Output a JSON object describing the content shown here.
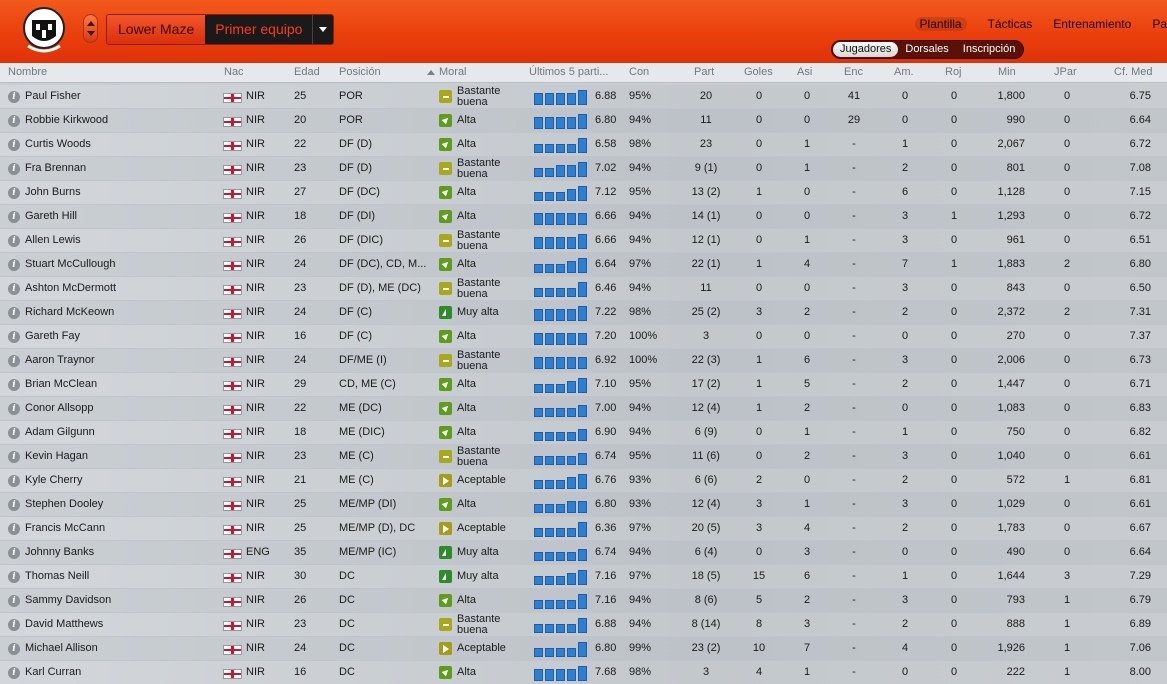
{
  "header": {
    "club_label": "Lower Maze",
    "squad_label": "Primer equipo",
    "nav": [
      "Plantilla",
      "Tácticas",
      "Entrenamiento",
      "Pa"
    ],
    "subnav": [
      "Jugadores",
      "Dorsales",
      "Inscripción"
    ],
    "colors": {
      "header": "#ea3f0d",
      "accent": "#2f7fd0"
    }
  },
  "columns": {
    "nombre": "Nombre",
    "nac": "Nac",
    "edad": "Edad",
    "posicion": "Posición",
    "moral": "Moral",
    "ultimos": "Últimos 5 parti...",
    "con": "Con",
    "part": "Part",
    "goles": "Goles",
    "asi": "Asi",
    "enc": "Enc",
    "am": "Am.",
    "roj": "Roj",
    "min": "Min",
    "jpar": "JPar",
    "cfmed": "Cf. Med"
  },
  "players": [
    {
      "name": "Paul Fisher",
      "nat": "NIR",
      "age": "25",
      "pos": "POR",
      "moral": "Bastante buena",
      "mk": "bb",
      "form": [
        4,
        4,
        4,
        4,
        5
      ],
      "cf": "6.88",
      "con": "95%",
      "part": "20",
      "goles": "0",
      "asi": "0",
      "enc": "41",
      "am": "0",
      "roj": "0",
      "min": "1,800",
      "jpar": "0",
      "med": "6.75"
    },
    {
      "name": "Robbie Kirkwood",
      "nat": "NIR",
      "age": "20",
      "pos": "POR",
      "moral": "Alta",
      "mk": "a",
      "form": [
        4,
        4,
        4,
        4,
        5
      ],
      "cf": "6.80",
      "con": "94%",
      "part": "11",
      "goles": "0",
      "asi": "0",
      "enc": "29",
      "am": "0",
      "roj": "0",
      "min": "990",
      "jpar": "0",
      "med": "6.64"
    },
    {
      "name": "Curtis Woods",
      "nat": "NIR",
      "age": "22",
      "pos": "DF (D)",
      "moral": "Alta",
      "mk": "a",
      "form": [
        3,
        3,
        3,
        3,
        5
      ],
      "cf": "6.58",
      "con": "98%",
      "part": "23",
      "goles": "0",
      "asi": "1",
      "enc": "-",
      "am": "1",
      "roj": "0",
      "min": "2,067",
      "jpar": "0",
      "med": "6.72"
    },
    {
      "name": "Fra Brennan",
      "nat": "NIR",
      "age": "23",
      "pos": "DF (D)",
      "moral": "Bastante buena",
      "mk": "bb",
      "form": [
        3,
        3,
        4,
        4,
        5
      ],
      "cf": "7.02",
      "con": "94%",
      "part": "9 (1)",
      "goles": "0",
      "asi": "1",
      "enc": "-",
      "am": "2",
      "roj": "0",
      "min": "801",
      "jpar": "0",
      "med": "7.08"
    },
    {
      "name": "John Burns",
      "nat": "NIR",
      "age": "27",
      "pos": "DF (DC)",
      "moral": "Alta",
      "mk": "a",
      "form": [
        3,
        3,
        3,
        4,
        5
      ],
      "cf": "7.12",
      "con": "95%",
      "part": "13 (2)",
      "goles": "1",
      "asi": "0",
      "enc": "-",
      "am": "6",
      "roj": "0",
      "min": "1,128",
      "jpar": "0",
      "med": "7.15"
    },
    {
      "name": "Gareth Hill",
      "nat": "NIR",
      "age": "18",
      "pos": "DF (DI)",
      "moral": "Alta",
      "mk": "a",
      "form": [
        4,
        4,
        4,
        4,
        4
      ],
      "cf": "6.66",
      "con": "94%",
      "part": "14 (1)",
      "goles": "0",
      "asi": "0",
      "enc": "-",
      "am": "3",
      "roj": "1",
      "min": "1,293",
      "jpar": "0",
      "med": "6.72"
    },
    {
      "name": "Allen Lewis",
      "nat": "NIR",
      "age": "26",
      "pos": "DF (DIC)",
      "moral": "Bastante buena",
      "mk": "bb",
      "form": [
        4,
        4,
        4,
        4,
        5
      ],
      "cf": "6.66",
      "con": "94%",
      "part": "12 (1)",
      "goles": "0",
      "asi": "1",
      "enc": "-",
      "am": "3",
      "roj": "0",
      "min": "961",
      "jpar": "0",
      "med": "6.51"
    },
    {
      "name": "Stuart McCullough",
      "nat": "NIR",
      "age": "24",
      "pos": "DF (DC), CD, M...",
      "moral": "Alta",
      "mk": "a",
      "form": [
        3,
        3,
        3,
        4,
        5
      ],
      "cf": "6.64",
      "con": "97%",
      "part": "22 (1)",
      "goles": "1",
      "asi": "4",
      "enc": "-",
      "am": "7",
      "roj": "1",
      "min": "1,883",
      "jpar": "2",
      "med": "6.80"
    },
    {
      "name": "Ashton McDermott",
      "nat": "NIR",
      "age": "23",
      "pos": "DF (D), ME (DC)",
      "moral": "Bastante buena",
      "mk": "bb",
      "form": [
        3,
        3,
        3,
        3,
        5
      ],
      "cf": "6.46",
      "con": "94%",
      "part": "11",
      "goles": "0",
      "asi": "0",
      "enc": "-",
      "am": "3",
      "roj": "0",
      "min": "843",
      "jpar": "0",
      "med": "6.50"
    },
    {
      "name": "Richard McKeown",
      "nat": "NIR",
      "age": "24",
      "pos": "DF (C)",
      "moral": "Muy alta",
      "mk": "ma",
      "form": [
        4,
        4,
        4,
        4,
        5
      ],
      "cf": "7.22",
      "con": "98%",
      "part": "25 (2)",
      "goles": "3",
      "asi": "2",
      "enc": "-",
      "am": "2",
      "roj": "0",
      "min": "2,372",
      "jpar": "2",
      "med": "7.31"
    },
    {
      "name": "Gareth Fay",
      "nat": "NIR",
      "age": "16",
      "pos": "DF (C)",
      "moral": "Alta",
      "mk": "a",
      "form": [
        4,
        4,
        4,
        4,
        4
      ],
      "cf": "7.20",
      "con": "100%",
      "part": "3",
      "goles": "0",
      "asi": "0",
      "enc": "-",
      "am": "0",
      "roj": "0",
      "min": "270",
      "jpar": "0",
      "med": "7.37"
    },
    {
      "name": "Aaron Traynor",
      "nat": "NIR",
      "age": "24",
      "pos": "DF/ME (I)",
      "moral": "Bastante buena",
      "mk": "bb",
      "form": [
        4,
        4,
        4,
        4,
        4
      ],
      "cf": "6.92",
      "con": "100%",
      "part": "22 (3)",
      "goles": "1",
      "asi": "6",
      "enc": "-",
      "am": "3",
      "roj": "0",
      "min": "2,006",
      "jpar": "0",
      "med": "6.73"
    },
    {
      "name": "Brian McClean",
      "nat": "NIR",
      "age": "29",
      "pos": "CD, ME (C)",
      "moral": "Alta",
      "mk": "a",
      "form": [
        3,
        3,
        3,
        4,
        5
      ],
      "cf": "7.10",
      "con": "95%",
      "part": "17 (2)",
      "goles": "1",
      "asi": "5",
      "enc": "-",
      "am": "2",
      "roj": "0",
      "min": "1,447",
      "jpar": "0",
      "med": "6.71"
    },
    {
      "name": "Conor Allsopp",
      "nat": "NIR",
      "age": "22",
      "pos": "ME (DC)",
      "moral": "Alta",
      "mk": "a",
      "form": [
        3,
        3,
        3,
        3,
        4
      ],
      "cf": "7.00",
      "con": "94%",
      "part": "12 (4)",
      "goles": "1",
      "asi": "2",
      "enc": "-",
      "am": "0",
      "roj": "0",
      "min": "1,083",
      "jpar": "0",
      "med": "6.83"
    },
    {
      "name": "Adam Gilgunn",
      "nat": "NIR",
      "age": "18",
      "pos": "ME (DIC)",
      "moral": "Alta",
      "mk": "a",
      "form": [
        3,
        3,
        3,
        3,
        4
      ],
      "cf": "6.90",
      "con": "94%",
      "part": "6 (9)",
      "goles": "0",
      "asi": "1",
      "enc": "-",
      "am": "1",
      "roj": "0",
      "min": "750",
      "jpar": "0",
      "med": "6.82"
    },
    {
      "name": "Kevin Hagan",
      "nat": "NIR",
      "age": "23",
      "pos": "ME (C)",
      "moral": "Bastante buena",
      "mk": "bb",
      "form": [
        3,
        3,
        3,
        3,
        4
      ],
      "cf": "6.74",
      "con": "95%",
      "part": "11 (6)",
      "goles": "0",
      "asi": "2",
      "enc": "-",
      "am": "3",
      "roj": "0",
      "min": "1,040",
      "jpar": "0",
      "med": "6.61"
    },
    {
      "name": "Kyle Cherry",
      "nat": "NIR",
      "age": "21",
      "pos": "ME (C)",
      "moral": "Aceptable",
      "mk": "ac",
      "form": [
        3,
        3,
        3,
        4,
        5
      ],
      "cf": "6.76",
      "con": "93%",
      "part": "6 (6)",
      "goles": "2",
      "asi": "0",
      "enc": "-",
      "am": "2",
      "roj": "0",
      "min": "572",
      "jpar": "1",
      "med": "6.81"
    },
    {
      "name": "Stephen Dooley",
      "nat": "NIR",
      "age": "25",
      "pos": "ME/MP (DI)",
      "moral": "Alta",
      "mk": "a",
      "form": [
        3,
        3,
        3,
        4,
        4
      ],
      "cf": "6.80",
      "con": "93%",
      "part": "12 (4)",
      "goles": "3",
      "asi": "1",
      "enc": "-",
      "am": "3",
      "roj": "0",
      "min": "1,029",
      "jpar": "0",
      "med": "6.61"
    },
    {
      "name": "Francis McCann",
      "nat": "NIR",
      "age": "25",
      "pos": "ME/MP (D), DC",
      "moral": "Aceptable",
      "mk": "ac",
      "form": [
        3,
        3,
        3,
        3,
        5
      ],
      "cf": "6.36",
      "con": "97%",
      "part": "20 (5)",
      "goles": "3",
      "asi": "4",
      "enc": "-",
      "am": "2",
      "roj": "0",
      "min": "1,783",
      "jpar": "0",
      "med": "6.67"
    },
    {
      "name": "Johnny Banks",
      "nat": "ENG",
      "age": "35",
      "pos": "ME/MP (IC)",
      "moral": "Muy alta",
      "mk": "ma",
      "form": [
        3,
        3,
        3,
        3,
        4
      ],
      "cf": "6.74",
      "con": "94%",
      "part": "6 (4)",
      "goles": "0",
      "asi": "3",
      "enc": "-",
      "am": "0",
      "roj": "0",
      "min": "490",
      "jpar": "0",
      "med": "6.64"
    },
    {
      "name": "Thomas Neill",
      "nat": "NIR",
      "age": "30",
      "pos": "DC",
      "moral": "Muy alta",
      "mk": "ma",
      "form": [
        3,
        3,
        3,
        4,
        5
      ],
      "cf": "7.16",
      "con": "97%",
      "part": "18 (5)",
      "goles": "15",
      "asi": "6",
      "enc": "-",
      "am": "1",
      "roj": "0",
      "min": "1,644",
      "jpar": "3",
      "med": "7.29"
    },
    {
      "name": "Sammy Davidson",
      "nat": "NIR",
      "age": "26",
      "pos": "DC",
      "moral": "Alta",
      "mk": "a",
      "form": [
        3,
        3,
        3,
        3,
        5
      ],
      "cf": "7.16",
      "con": "94%",
      "part": "8 (6)",
      "goles": "5",
      "asi": "2",
      "enc": "-",
      "am": "3",
      "roj": "0",
      "min": "793",
      "jpar": "1",
      "med": "6.79"
    },
    {
      "name": "David Matthews",
      "nat": "NIR",
      "age": "23",
      "pos": "DC",
      "moral": "Bastante buena",
      "mk": "bb",
      "form": [
        3,
        3,
        3,
        3,
        5
      ],
      "cf": "6.88",
      "con": "94%",
      "part": "8 (14)",
      "goles": "8",
      "asi": "3",
      "enc": "-",
      "am": "2",
      "roj": "0",
      "min": "888",
      "jpar": "1",
      "med": "6.89"
    },
    {
      "name": "Michael Allison",
      "nat": "NIR",
      "age": "24",
      "pos": "DC",
      "moral": "Aceptable",
      "mk": "ac",
      "form": [
        3,
        3,
        3,
        3,
        5
      ],
      "cf": "6.80",
      "con": "99%",
      "part": "23 (2)",
      "goles": "10",
      "asi": "7",
      "enc": "-",
      "am": "4",
      "roj": "0",
      "min": "1,926",
      "jpar": "1",
      "med": "7.06"
    },
    {
      "name": "Karl Curran",
      "nat": "NIR",
      "age": "16",
      "pos": "DC",
      "moral": "Alta",
      "mk": "a",
      "form": [
        4,
        4,
        4,
        4,
        5
      ],
      "cf": "7.68",
      "con": "98%",
      "part": "3",
      "goles": "4",
      "asi": "1",
      "enc": "-",
      "am": "0",
      "roj": "0",
      "min": "222",
      "jpar": "1",
      "med": "8.00"
    }
  ]
}
